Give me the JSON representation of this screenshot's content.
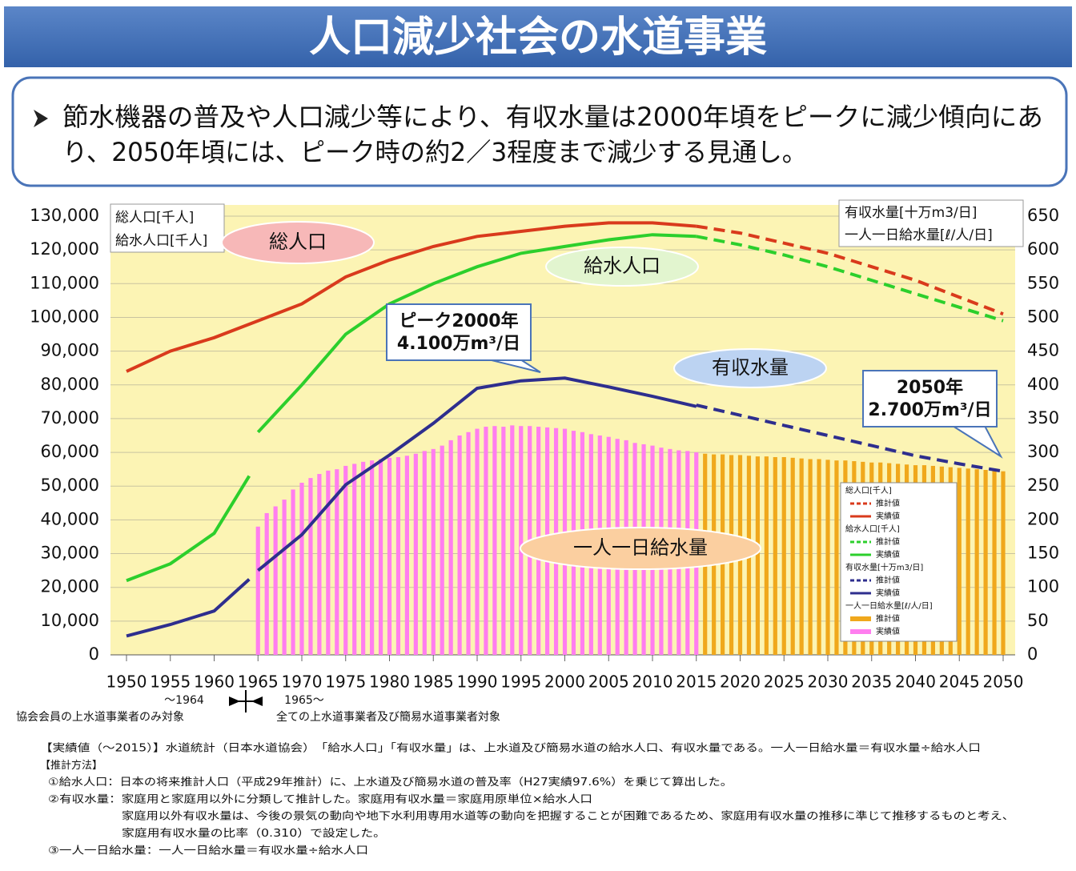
{
  "header": {
    "title": "人口減少社会の水道事業"
  },
  "summary": [
    "節水機器の普及や人口減少等により、有収水量は2000年頃をピークに減少傾向にあ",
    "り、2050年頃には、ピーク時の約2／3程度まで減少する見通し。"
  ],
  "chart_data": {
    "type": "line",
    "y_label": [
      "総人口[千人]",
      "給水人口[千人]"
    ],
    "y2_label": [
      "有収水量[十万m3/日]",
      "一人一日給水量[ℓ/人/日]"
    ],
    "xlim": [
      1950,
      2050
    ],
    "xticks": [
      1950,
      1955,
      1960,
      1965,
      1970,
      1975,
      1980,
      1985,
      1990,
      1995,
      2000,
      2005,
      2010,
      2015,
      2020,
      2025,
      2030,
      2035,
      2040,
      2045,
      2050
    ],
    "ylim": [
      0,
      130000
    ],
    "yticks": [
      {
        "value": 0,
        "label": "0"
      },
      {
        "value": 10000,
        "label": "10,000"
      },
      {
        "value": 20000,
        "label": "20,000"
      },
      {
        "value": 30000,
        "label": "30,000"
      },
      {
        "value": 40000,
        "label": "40,000"
      },
      {
        "value": 50000,
        "label": "50,000"
      },
      {
        "value": 60000,
        "label": "60,000"
      },
      {
        "value": 70000,
        "label": "70,000"
      },
      {
        "value": 80000,
        "label": "80,000"
      },
      {
        "value": 90000,
        "label": "90,000"
      },
      {
        "value": 100000,
        "label": "100,000"
      },
      {
        "value": 110000,
        "label": "110,000"
      },
      {
        "value": 120000,
        "label": "120,000"
      },
      {
        "value": 130000,
        "label": "130,000"
      }
    ],
    "y2lim": [
      0,
      650
    ],
    "y2ticks": [
      0,
      50,
      100,
      150,
      200,
      250,
      300,
      350,
      400,
      450,
      500,
      550,
      600,
      650
    ],
    "grid": true,
    "groups": [
      {
        "title": "総人口[千人]",
        "series": [
          {
            "name": "推計値",
            "kind": "line",
            "dashed": true,
            "color": "#d93a1c",
            "x": [
              2015,
              2020,
              2025,
              2030,
              2035,
              2040,
              2045,
              2050
            ],
            "values": [
              127000,
              125000,
              122000,
              119000,
              115000,
              111000,
              106000,
              101000
            ]
          },
          {
            "name": "実績値",
            "kind": "line",
            "dashed": false,
            "color": "#d93a1c",
            "x": [
              1950,
              1955,
              1960,
              1965,
              1970,
              1975,
              1980,
              1985,
              1990,
              1995,
              2000,
              2005,
              2010,
              2015
            ],
            "values": [
              84000,
              90000,
              94000,
              99000,
              104000,
              112000,
              117000,
              121000,
              124000,
              125500,
              127000,
              128000,
              128000,
              127000
            ]
          }
        ]
      },
      {
        "title": "給水人口[千人]",
        "series": [
          {
            "name": "推計値",
            "kind": "line",
            "dashed": true,
            "color": "#2ccf2c",
            "x": [
              2015,
              2020,
              2025,
              2030,
              2035,
              2040,
              2045,
              2050
            ],
            "values": [
              124000,
              121500,
              118500,
              115000,
              111000,
              107000,
              103000,
              99000
            ]
          },
          {
            "name": "実績値",
            "kind": "line",
            "dashed": false,
            "color": "#2ccf2c",
            "x": [
              1950,
              1955,
              1960,
              1964,
              null,
              1965,
              1970,
              1975,
              1980,
              1985,
              1990,
              1995,
              2000,
              2005,
              2010,
              2015
            ],
            "values": [
              22000,
              27000,
              36000,
              53000,
              null,
              66000,
              80000,
              95000,
              104000,
              110000,
              115000,
              119000,
              121000,
              123000,
              124500,
              124000
            ]
          }
        ]
      },
      {
        "title": "有収水量[十万m3/日]",
        "series": [
          {
            "name": "推計値",
            "kind": "line",
            "dashed": true,
            "axis": "y2",
            "color": "#2e2e8e",
            "x": [
              2015,
              2020,
              2025,
              2030,
              2035,
              2040,
              2045,
              2050
            ],
            "values": [
              370,
              355,
              340,
              325,
              310,
              295,
              283,
              272
            ]
          },
          {
            "name": "実績値",
            "kind": "line",
            "dashed": false,
            "axis": "y2",
            "color": "#2e2e8e",
            "x": [
              1950,
              1955,
              1960,
              1964,
              null,
              1965,
              1970,
              1975,
              1980,
              1985,
              1990,
              1995,
              2000,
              2005,
              2010,
              2015
            ],
            "values": [
              28,
              45,
              65,
              112,
              null,
              125,
              178,
              252,
              296,
              343,
              395,
              406,
              410,
              397,
              383,
              368
            ]
          }
        ]
      },
      {
        "title": "一人一日給水量[ℓ/人/日]",
        "series": [
          {
            "name": "推計値",
            "kind": "bar",
            "axis": "y2",
            "color": "#f0a81c",
            "x": [
              2016,
              2017,
              2018,
              2019,
              2020,
              2021,
              2022,
              2023,
              2024,
              2025,
              2026,
              2027,
              2028,
              2029,
              2030,
              2031,
              2032,
              2033,
              2034,
              2035,
              2036,
              2037,
              2038,
              2039,
              2040,
              2041,
              2042,
              2043,
              2044,
              2045,
              2046,
              2047,
              2048,
              2049,
              2050
            ],
            "values": [
              298,
              297,
              297,
              296,
              296,
              295,
              294,
              294,
              293,
              293,
              292,
              291,
              290,
              290,
              289,
              288,
              288,
              287,
              286,
              285,
              285,
              284,
              283,
              282,
              281,
              281,
              280,
              279,
              278,
              277,
              276,
              275,
              274,
              273,
              272
            ]
          },
          {
            "name": "実績値",
            "kind": "bar",
            "axis": "y2",
            "color": "#ff7eef",
            "x": [
              1965,
              1966,
              1967,
              1968,
              1969,
              1970,
              1971,
              1972,
              1973,
              1974,
              1975,
              1976,
              1977,
              1978,
              1979,
              1980,
              1981,
              1982,
              1983,
              1984,
              1985,
              1986,
              1987,
              1988,
              1989,
              1990,
              1991,
              1992,
              1993,
              1994,
              1995,
              1996,
              1997,
              1998,
              1999,
              2000,
              2001,
              2002,
              2003,
              2004,
              2005,
              2006,
              2007,
              2008,
              2009,
              2010,
              2011,
              2012,
              2013,
              2014,
              2015
            ],
            "values": [
              190,
              210,
              220,
              230,
              245,
              255,
              262,
              268,
              273,
              275,
              280,
              283,
              286,
              288,
              290,
              292,
              293,
              295,
              298,
              302,
              305,
              310,
              318,
              325,
              330,
              335,
              338,
              339,
              338,
              340,
              339,
              339,
              338,
              337,
              336,
              335,
              332,
              330,
              327,
              325,
              323,
              320,
              318,
              314,
              312,
              310,
              307,
              305,
              303,
              302,
              300
            ]
          }
        ]
      }
    ],
    "annotations": [
      "総人口",
      "給水人口",
      "有収水量",
      "一人一日給水量"
    ],
    "callouts": [
      [
        "ピーク2000年",
        "4.100万m³/日"
      ],
      [
        "2050年",
        "2.700万m³/日"
      ]
    ],
    "x_notes": [
      "～1964",
      "1965～",
      "協会会員の上水道事業者のみ対象",
      "全ての上水道事業者及び簡易水道事業者対象"
    ]
  },
  "notes": [
    "【実績値（～2015）】水道統計（日本水道協会）　「給水人口」「有収水量」は、上水道及び簡易水道の給水人口、有収水量である。一人一日給水量＝有収水量÷給水人口",
    "【推計方法】",
    "①給水人口：日本の将来推計人口（平成29年推計）に、上水道及び簡易水道の普及率（H27実績97.6%）を乗じて算出した。",
    "②有収水量：家庭用と家庭用以外に分類して推計した。家庭用有収水量＝家庭用原単位×給水人口",
    "家庭用以外有収水量は、今後の景気の動向や地下水利用専用水道等の動向を把握することが困難であるため、家庭用有収水量の推移に準じて推移するものと考え、",
    "家庭用有収水量の比率（0.310）で設定した。",
    "③一人一日給水量：一人一日給水量＝有収水量÷給水人口"
  ]
}
